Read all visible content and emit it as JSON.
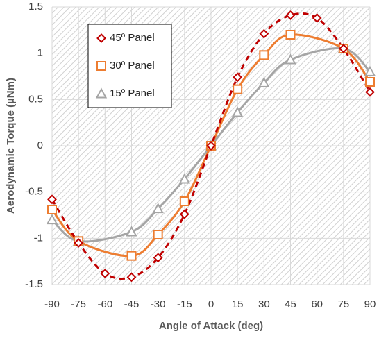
{
  "chart_data": {
    "type": "line",
    "x_label": "Angle of Attack (deg)",
    "y_label": "Aerodynamic Torque (µNm)",
    "x": [
      -90,
      -75,
      -60,
      -45,
      -30,
      -15,
      0,
      15,
      30,
      45,
      60,
      75,
      90
    ],
    "xlim": [
      -90,
      90
    ],
    "xticks": [
      -90,
      -75,
      -60,
      -45,
      -30,
      -15,
      0,
      15,
      30,
      45,
      60,
      75,
      90
    ],
    "ylim": [
      -1.5,
      1.5
    ],
    "yticks": [
      -1.5,
      -1,
      -0.5,
      0,
      0.5,
      1,
      1.5
    ],
    "grid": true,
    "series": [
      {
        "name": "45º Panel",
        "color": "#c00000",
        "marker": "diamond",
        "dashed": true,
        "values": [
          -0.58,
          -1.05,
          -1.38,
          -1.42,
          -1.21,
          -0.74,
          0,
          0.74,
          1.21,
          1.41,
          1.38,
          1.05,
          0.58
        ]
      },
      {
        "name": "30º Panel",
        "color": "#ed7d31",
        "marker": "square",
        "dashed": false,
        "values": [
          -0.69,
          -1.03,
          null,
          -1.19,
          -0.96,
          -0.6,
          0,
          0.61,
          0.98,
          1.2,
          null,
          1.05,
          0.69
        ]
      },
      {
        "name": "15º Panel",
        "color": "#a5a5a5",
        "marker": "triangle",
        "dashed": false,
        "values": [
          -0.8,
          -1.03,
          null,
          -0.93,
          -0.68,
          -0.36,
          0,
          0.36,
          0.68,
          0.93,
          null,
          1.05,
          0.8
        ]
      }
    ]
  }
}
